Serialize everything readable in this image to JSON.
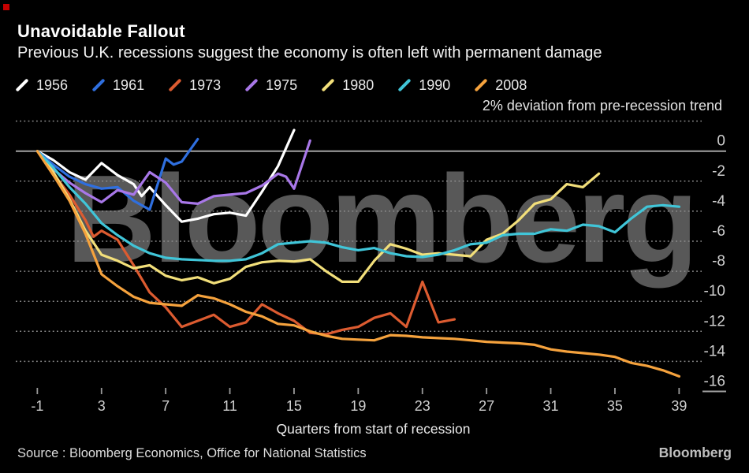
{
  "header": {
    "title": "Unavoidable Fallout",
    "subtitle": "Previous U.K. recessions suggest the economy is often left with permanent damage"
  },
  "legend": {
    "items": [
      {
        "year": "1956",
        "color": "#ffffff"
      },
      {
        "year": "1961",
        "color": "#2f6fdf"
      },
      {
        "year": "1973",
        "color": "#dc5b30"
      },
      {
        "year": "1975",
        "color": "#a877e8"
      },
      {
        "year": "1980",
        "color": "#f2df7a"
      },
      {
        "year": "1990",
        "color": "#40c5d8"
      },
      {
        "year": "2008",
        "color": "#f5a23d"
      }
    ]
  },
  "chart_data": {
    "type": "line",
    "title": "Unavoidable Fallout",
    "subtitle": "Previous U.K. recessions suggest the economy is often left with permanent damage",
    "annotation": "2% deviation from pre-recession trend",
    "xlabel": "Quarters from start of recession",
    "ylabel": "% deviation from pre-recession trend",
    "xlim": [
      -1,
      39
    ],
    "ylim": [
      -16,
      2
    ],
    "grid": "horizontal-dotted",
    "legend_position": "top",
    "x_ticks": [
      -1,
      3,
      7,
      11,
      15,
      19,
      23,
      27,
      31,
      35,
      39
    ],
    "y_ticks": [
      {
        "v": 0,
        "label": "0"
      },
      {
        "v": -2,
        "label": "-2"
      },
      {
        "v": -4,
        "label": "-4"
      },
      {
        "v": -6,
        "label": "-6"
      },
      {
        "v": -8,
        "label": "-8"
      },
      {
        "v": -10,
        "label": "-10"
      },
      {
        "v": -12,
        "label": "-12"
      },
      {
        "v": -14,
        "label": "-14"
      },
      {
        "v": -16,
        "label": "-16"
      }
    ],
    "y_gridlines": [
      2,
      0,
      -2,
      -4,
      -6,
      -8,
      -10,
      -12,
      -14
    ],
    "series": [
      {
        "name": "1956",
        "color": "#ffffff",
        "points": [
          [
            -1,
            0
          ],
          [
            0,
            -0.6
          ],
          [
            1,
            -1.4
          ],
          [
            2,
            -1.9
          ],
          [
            3,
            -0.8
          ],
          [
            4,
            -1.6
          ],
          [
            5,
            -2.2
          ],
          [
            5.5,
            -3.0
          ],
          [
            6,
            -2.4
          ],
          [
            7,
            -3.6
          ],
          [
            8,
            -4.7
          ],
          [
            9,
            -4.5
          ],
          [
            10,
            -4.2
          ],
          [
            11,
            -4.1
          ],
          [
            12,
            -4.3
          ],
          [
            13,
            -2.7
          ],
          [
            14,
            -1.0
          ],
          [
            15,
            1.4
          ]
        ]
      },
      {
        "name": "1961",
        "color": "#2f6fdf",
        "points": [
          [
            -1,
            0
          ],
          [
            0,
            -0.9
          ],
          [
            1,
            -1.7
          ],
          [
            2,
            -2.2
          ],
          [
            3,
            -2.5
          ],
          [
            4,
            -2.4
          ],
          [
            5,
            -3.3
          ],
          [
            6,
            -3.9
          ],
          [
            7,
            -0.5
          ],
          [
            7.5,
            -0.9
          ],
          [
            8,
            -0.7
          ],
          [
            9,
            0.8
          ]
        ]
      },
      {
        "name": "1973",
        "color": "#dc5b30",
        "points": [
          [
            -1,
            0
          ],
          [
            0,
            -1.5
          ],
          [
            1,
            -2.9
          ],
          [
            2,
            -4.6
          ],
          [
            2.5,
            -5.7
          ],
          [
            3,
            -5.3
          ],
          [
            4,
            -5.9
          ],
          [
            5,
            -7.6
          ],
          [
            6,
            -9.4
          ],
          [
            7,
            -10.4
          ],
          [
            8,
            -11.7
          ],
          [
            9,
            -11.3
          ],
          [
            10,
            -10.9
          ],
          [
            11,
            -11.7
          ],
          [
            12,
            -11.4
          ],
          [
            13,
            -10.2
          ],
          [
            14,
            -10.8
          ],
          [
            15,
            -11.3
          ],
          [
            16,
            -12.1
          ],
          [
            17,
            -12.2
          ],
          [
            18,
            -11.9
          ],
          [
            19,
            -11.7
          ],
          [
            20,
            -11.1
          ],
          [
            21,
            -10.8
          ],
          [
            22,
            -11.7
          ],
          [
            23,
            -8.7
          ],
          [
            24,
            -11.4
          ],
          [
            25,
            -11.2
          ]
        ]
      },
      {
        "name": "1975",
        "color": "#a877e8",
        "points": [
          [
            -1,
            0
          ],
          [
            0,
            -1.2
          ],
          [
            1,
            -2.1
          ],
          [
            2,
            -2.8
          ],
          [
            3,
            -3.4
          ],
          [
            4,
            -2.6
          ],
          [
            5,
            -2.9
          ],
          [
            6,
            -1.4
          ],
          [
            7,
            -2.1
          ],
          [
            8,
            -3.4
          ],
          [
            9,
            -3.5
          ],
          [
            10,
            -3.0
          ],
          [
            11,
            -2.9
          ],
          [
            12,
            -2.8
          ],
          [
            13,
            -2.3
          ],
          [
            14,
            -1.5
          ],
          [
            14.5,
            -1.7
          ],
          [
            15,
            -2.5
          ],
          [
            16,
            0.7
          ]
        ]
      },
      {
        "name": "1980",
        "color": "#f2df7a",
        "points": [
          [
            -1,
            0
          ],
          [
            0,
            -1.4
          ],
          [
            1,
            -3.2
          ],
          [
            2,
            -5.3
          ],
          [
            3,
            -6.9
          ],
          [
            4,
            -7.3
          ],
          [
            5,
            -7.8
          ],
          [
            6,
            -7.6
          ],
          [
            7,
            -8.3
          ],
          [
            8,
            -8.6
          ],
          [
            9,
            -8.4
          ],
          [
            10,
            -8.8
          ],
          [
            11,
            -8.5
          ],
          [
            12,
            -7.7
          ],
          [
            13,
            -7.4
          ],
          [
            14,
            -7.3
          ],
          [
            15,
            -7.35
          ],
          [
            16,
            -7.2
          ],
          [
            17,
            -8.0
          ],
          [
            18,
            -8.7
          ],
          [
            19,
            -8.7
          ],
          [
            20,
            -7.3
          ],
          [
            21,
            -6.2
          ],
          [
            22,
            -6.5
          ],
          [
            23,
            -6.9
          ],
          [
            24,
            -6.8
          ],
          [
            25,
            -6.9
          ],
          [
            26,
            -7.0
          ],
          [
            27,
            -5.9
          ],
          [
            28,
            -5.5
          ],
          [
            29,
            -4.6
          ],
          [
            30,
            -3.5
          ],
          [
            31,
            -3.2
          ],
          [
            32,
            -2.2
          ],
          [
            33,
            -2.4
          ],
          [
            34,
            -1.5
          ]
        ]
      },
      {
        "name": "1990",
        "color": "#40c5d8",
        "points": [
          [
            -1,
            0
          ],
          [
            0,
            -1.1
          ],
          [
            1,
            -2.4
          ],
          [
            2,
            -3.5
          ],
          [
            3,
            -4.8
          ],
          [
            4,
            -5.6
          ],
          [
            5,
            -6.3
          ],
          [
            6,
            -6.8
          ],
          [
            7,
            -7.1
          ],
          [
            8,
            -7.2
          ],
          [
            9,
            -7.25
          ],
          [
            10,
            -7.3
          ],
          [
            11,
            -7.3
          ],
          [
            12,
            -7.2
          ],
          [
            13,
            -6.8
          ],
          [
            14,
            -6.2
          ],
          [
            15,
            -6.1
          ],
          [
            16,
            -6.0
          ],
          [
            17,
            -6.1
          ],
          [
            18,
            -6.4
          ],
          [
            19,
            -6.6
          ],
          [
            20,
            -6.45
          ],
          [
            21,
            -6.8
          ],
          [
            22,
            -7.0
          ],
          [
            23,
            -7.05
          ],
          [
            24,
            -6.9
          ],
          [
            25,
            -6.6
          ],
          [
            26,
            -6.2
          ],
          [
            27,
            -6.1
          ],
          [
            28,
            -5.6
          ],
          [
            29,
            -5.5
          ],
          [
            30,
            -5.5
          ],
          [
            31,
            -5.2
          ],
          [
            32,
            -5.3
          ],
          [
            33,
            -4.9
          ],
          [
            34,
            -5.0
          ],
          [
            35,
            -5.4
          ],
          [
            36,
            -4.5
          ],
          [
            37,
            -3.7
          ],
          [
            38,
            -3.6
          ],
          [
            39,
            -3.7
          ]
        ]
      },
      {
        "name": "2008",
        "color": "#f5a23d",
        "points": [
          [
            -1,
            0
          ],
          [
            0,
            -1.6
          ],
          [
            1,
            -3.3
          ],
          [
            2,
            -5.5
          ],
          [
            3,
            -8.2
          ],
          [
            4,
            -9.0
          ],
          [
            5,
            -9.7
          ],
          [
            6,
            -10.1
          ],
          [
            7,
            -10.2
          ],
          [
            8,
            -10.3
          ],
          [
            9,
            -9.6
          ],
          [
            10,
            -9.8
          ],
          [
            11,
            -10.2
          ],
          [
            12,
            -10.7
          ],
          [
            13,
            -11.0
          ],
          [
            14,
            -11.5
          ],
          [
            15,
            -11.6
          ],
          [
            16,
            -12.0
          ],
          [
            17,
            -12.3
          ],
          [
            18,
            -12.5
          ],
          [
            19,
            -12.55
          ],
          [
            20,
            -12.6
          ],
          [
            21,
            -12.25
          ],
          [
            22,
            -12.3
          ],
          [
            23,
            -12.4
          ],
          [
            24,
            -12.45
          ],
          [
            25,
            -12.5
          ],
          [
            26,
            -12.6
          ],
          [
            27,
            -12.7
          ],
          [
            28,
            -12.75
          ],
          [
            29,
            -12.8
          ],
          [
            30,
            -12.9
          ],
          [
            31,
            -13.2
          ],
          [
            32,
            -13.35
          ],
          [
            33,
            -13.45
          ],
          [
            34,
            -13.55
          ],
          [
            35,
            -13.7
          ],
          [
            36,
            -14.1
          ],
          [
            37,
            -14.3
          ],
          [
            38,
            -14.6
          ],
          [
            39,
            -15.0
          ]
        ]
      }
    ]
  },
  "watermark": "Bloomberg",
  "footer": {
    "source": "Source : Bloomberg Economics, Office for National Statistics",
    "logo": "Bloomberg"
  }
}
